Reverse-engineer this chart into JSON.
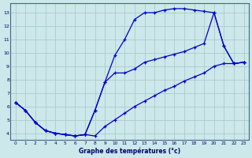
{
  "title": "Graphe des températures (°c)",
  "bg_color": "#cce8ea",
  "grid_color": "#aacccc",
  "line_color": "#0000cc",
  "xlim": [
    -0.5,
    23.5
  ],
  "ylim": [
    3.5,
    13.7
  ],
  "xticks": [
    0,
    1,
    2,
    3,
    4,
    5,
    6,
    7,
    8,
    9,
    10,
    11,
    12,
    13,
    14,
    15,
    16,
    17,
    18,
    19,
    20,
    21,
    22,
    23
  ],
  "yticks": [
    4,
    5,
    6,
    7,
    8,
    9,
    10,
    11,
    12,
    13
  ],
  "line1_x": [
    0,
    1,
    2,
    3,
    4,
    5,
    6,
    7,
    8,
    9,
    10,
    11,
    12,
    13,
    14,
    15,
    16,
    17,
    18,
    19,
    20,
    21,
    22,
    23
  ],
  "line1_y": [
    6.3,
    5.7,
    4.8,
    4.2,
    4.0,
    3.9,
    3.8,
    3.9,
    5.7,
    7.8,
    9.8,
    11.0,
    12.5,
    13.0,
    13.0,
    13.2,
    13.3,
    13.3,
    13.2,
    13.1,
    13.0,
    10.5,
    9.2,
    9.3
  ],
  "line2_x": [
    0,
    1,
    2,
    3,
    4,
    5,
    6,
    7,
    8,
    9,
    10,
    11,
    12,
    13,
    14,
    15,
    16,
    17,
    18,
    19,
    20,
    21,
    22,
    23
  ],
  "line2_y": [
    6.3,
    5.7,
    4.8,
    4.2,
    4.0,
    3.9,
    3.8,
    3.9,
    5.7,
    7.8,
    8.5,
    8.5,
    8.8,
    9.3,
    9.5,
    9.7,
    9.9,
    10.1,
    10.4,
    10.7,
    13.0,
    10.5,
    9.2,
    9.3
  ],
  "line3_x": [
    0,
    1,
    2,
    3,
    4,
    5,
    6,
    7,
    8,
    9,
    10,
    11,
    12,
    13,
    14,
    15,
    16,
    17,
    18,
    19,
    20,
    21,
    22,
    23
  ],
  "line3_y": [
    6.3,
    5.7,
    4.8,
    4.2,
    4.0,
    3.9,
    3.8,
    3.9,
    3.8,
    4.5,
    5.0,
    5.5,
    6.0,
    6.4,
    6.8,
    7.2,
    7.5,
    7.9,
    8.2,
    8.5,
    9.0,
    9.2,
    9.2,
    9.3
  ]
}
